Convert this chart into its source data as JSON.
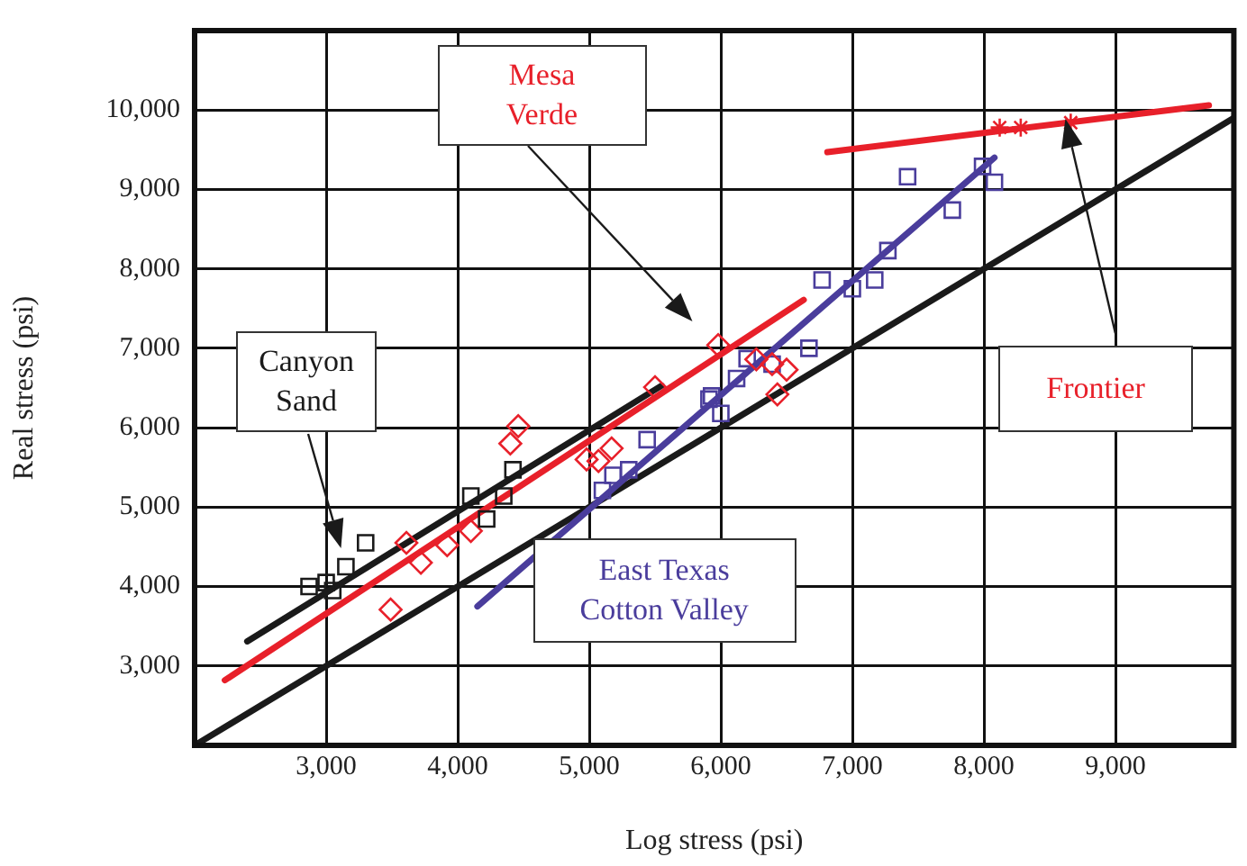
{
  "chart_data": {
    "type": "scatter",
    "xlabel": "Log stress (psi)",
    "ylabel": "Real stress (psi)",
    "xlim": [
      2000,
      9900
    ],
    "ylim": [
      2000,
      11000
    ],
    "xticks": [
      {
        "value": 3000,
        "label": "3,000"
      },
      {
        "value": 4000,
        "label": "4,000"
      },
      {
        "value": 5000,
        "label": "5,000"
      },
      {
        "value": 6000,
        "label": "6,000"
      },
      {
        "value": 7000,
        "label": "7,000"
      },
      {
        "value": 8000,
        "label": "8,000"
      },
      {
        "value": 9000,
        "label": "9,000"
      }
    ],
    "yticks": [
      {
        "value": 3000,
        "label": "3,000"
      },
      {
        "value": 4000,
        "label": "4,000"
      },
      {
        "value": 5000,
        "label": "5,000"
      },
      {
        "value": 6000,
        "label": "6,000"
      },
      {
        "value": 7000,
        "label": "7,000"
      },
      {
        "value": 8000,
        "label": "8,000"
      },
      {
        "value": 9000,
        "label": "9,000"
      },
      {
        "value": 10000,
        "label": "10,000"
      }
    ],
    "grid": true,
    "legend": false,
    "series": [
      {
        "name": "Canyon Sand",
        "marker": "square",
        "color": "#1a1a1a",
        "x": [
          2870,
          3000,
          3050,
          3150,
          3300,
          4100,
          4220,
          4350,
          4420
        ],
        "values": [
          4000,
          4050,
          3950,
          4250,
          4550,
          5140,
          4850,
          5140,
          5470
        ]
      },
      {
        "name": "Mesa Verde",
        "marker": "diamond",
        "color": "#e8202a",
        "x": [
          3490,
          3610,
          3720,
          3920,
          4100,
          4400,
          4460,
          4980,
          5070,
          5170,
          5500,
          5980,
          6270,
          6390,
          6500,
          6430
        ],
        "values": [
          3710,
          4550,
          4300,
          4520,
          4700,
          5800,
          6020,
          5600,
          5580,
          5740,
          6510,
          7040,
          6860,
          6800,
          6730,
          6420
        ]
      },
      {
        "name": "East Texas Cotton Valley",
        "marker": "square",
        "color": "#4a3d9c",
        "x": [
          5100,
          5180,
          5300,
          5440,
          5910,
          5930,
          6000,
          6120,
          6200,
          6390,
          6670,
          6770,
          7000,
          7170,
          7270,
          7420,
          7760,
          7990,
          8080
        ],
        "values": [
          5210,
          5400,
          5470,
          5850,
          6360,
          6400,
          6180,
          6620,
          6870,
          6800,
          7000,
          7860,
          7750,
          7860,
          8230,
          9160,
          8740,
          9290,
          9090
        ]
      },
      {
        "name": "Frontier",
        "marker": "cross",
        "color": "#e8202a",
        "x": [
          8120,
          8280,
          8660
        ],
        "values": [
          9780,
          9780,
          9840
        ]
      },
      {
        "type": "line",
        "color": "#1a1a1a",
        "x": [
          2400,
          5550
        ],
        "values": [
          3310,
          6530
        ]
      },
      {
        "type": "line",
        "color": "#e8202a",
        "x": [
          2230,
          6630
        ],
        "values": [
          2820,
          7610
        ]
      },
      {
        "type": "line",
        "color": "#4a3d9c",
        "x": [
          4150,
          8080
        ],
        "values": [
          3750,
          9400
        ]
      },
      {
        "type": "line",
        "color": "#e8202a",
        "x": [
          6810,
          9710
        ],
        "values": [
          9470,
          10060
        ]
      },
      {
        "type": "line",
        "color": "#1a1a1a",
        "x": [
          2000,
          9900
        ],
        "values": [
          2000,
          9900
        ]
      }
    ]
  }
}
